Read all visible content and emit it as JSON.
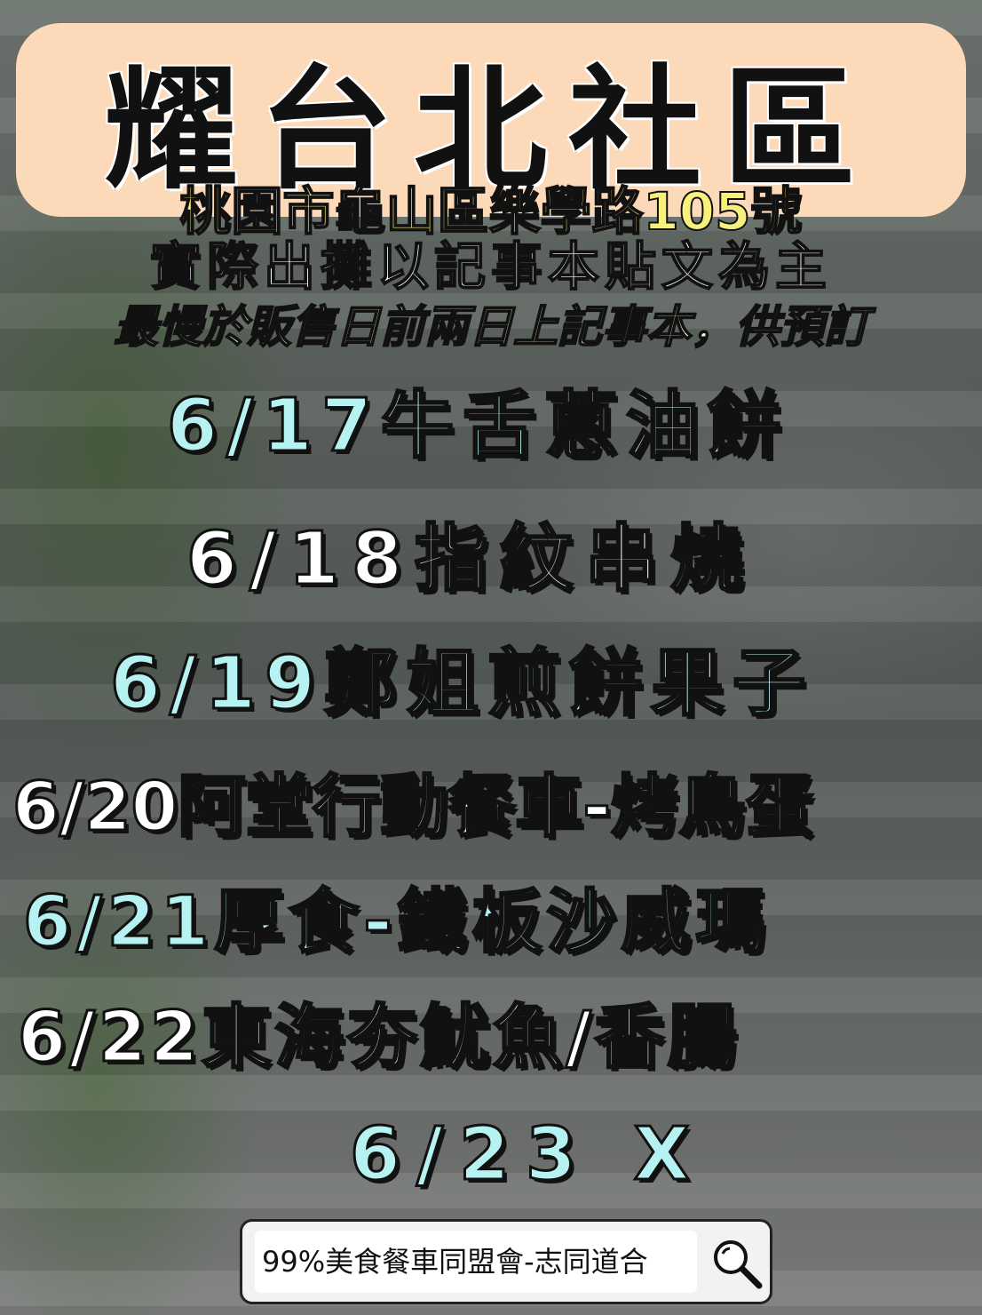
{
  "title": "耀台北社區",
  "address": "桃園市龜山區樂學路105號",
  "note": "實際出攤以記事本貼文為主",
  "subnote": "最慢於販售日前兩日上記事本，供預訂",
  "schedule": [
    {
      "text": "6/17牛舌蔥油餅",
      "color": "#b7f2f3"
    },
    {
      "text": "6/18指紋串燒",
      "color": "#ffffff"
    },
    {
      "text": "6/19鄭姐煎餅果子",
      "color": "#b7f2f3"
    },
    {
      "text": "6/20阿堂行動餐車-烤鳥蛋",
      "color": "#ffffff"
    },
    {
      "text": "6/21厚食-鐵板沙威瑪",
      "color": "#b7f2f3"
    },
    {
      "text": "6/22東海夯魷魚/香腸",
      "color": "#ffffff"
    },
    {
      "text": "6/23 X",
      "color": "#b7f2f3"
    }
  ],
  "search": {
    "text": "99%美食餐車同盟會-志同道合",
    "icon": "search-icon"
  }
}
